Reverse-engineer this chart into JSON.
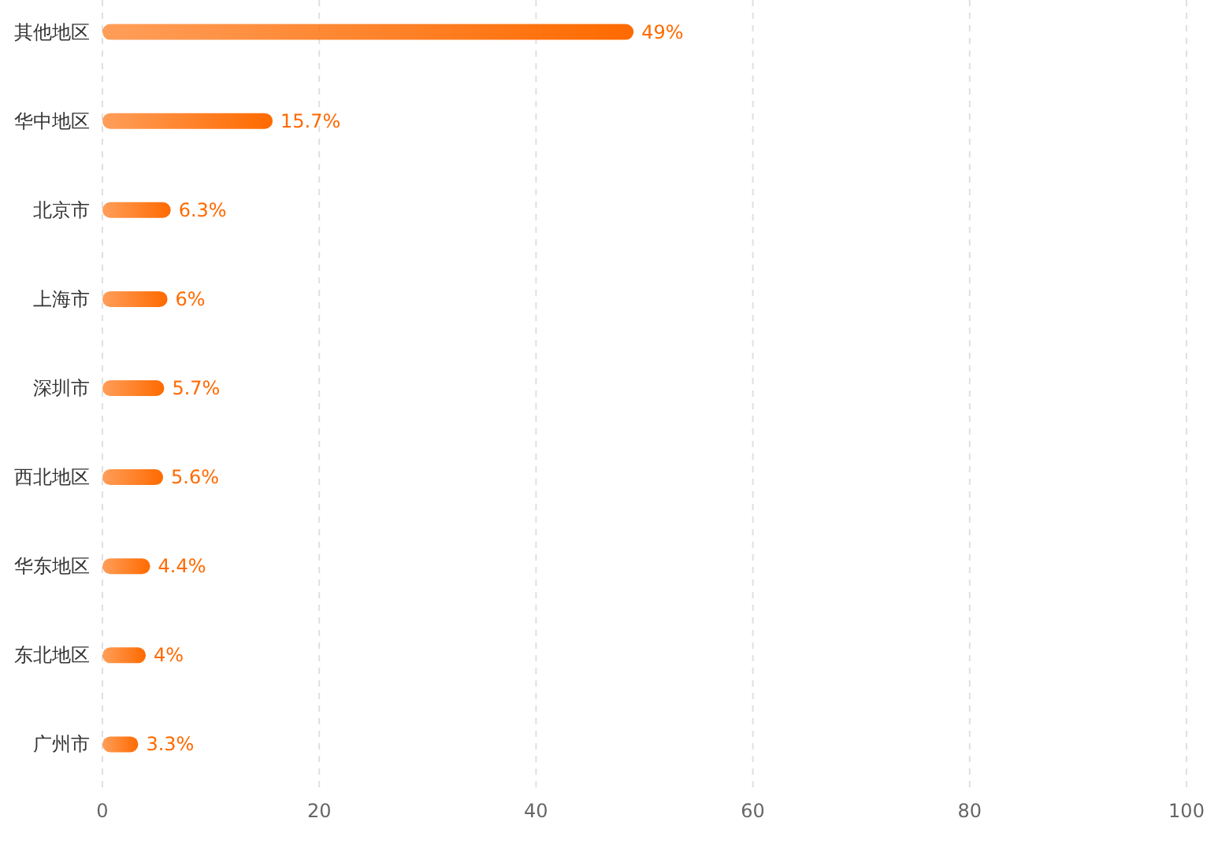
{
  "chart_data": {
    "type": "bar",
    "orientation": "horizontal",
    "categories": [
      "其他地区",
      "华中地区",
      "北京市",
      "上海市",
      "深圳市",
      "西北地区",
      "华东地区",
      "东北地区",
      "广州市"
    ],
    "values": [
      49,
      15.7,
      6.3,
      6,
      5.7,
      5.6,
      4.4,
      4,
      3.3
    ],
    "value_labels": [
      "49%",
      "15.7%",
      "6.3%",
      "6%",
      "5.7%",
      "5.6%",
      "4.4%",
      "4%",
      "3.3%"
    ],
    "color": "#ff6a00",
    "xlim": [
      0,
      100
    ],
    "xticks": [
      0,
      20,
      40,
      60,
      80,
      100
    ],
    "grid": "x"
  }
}
